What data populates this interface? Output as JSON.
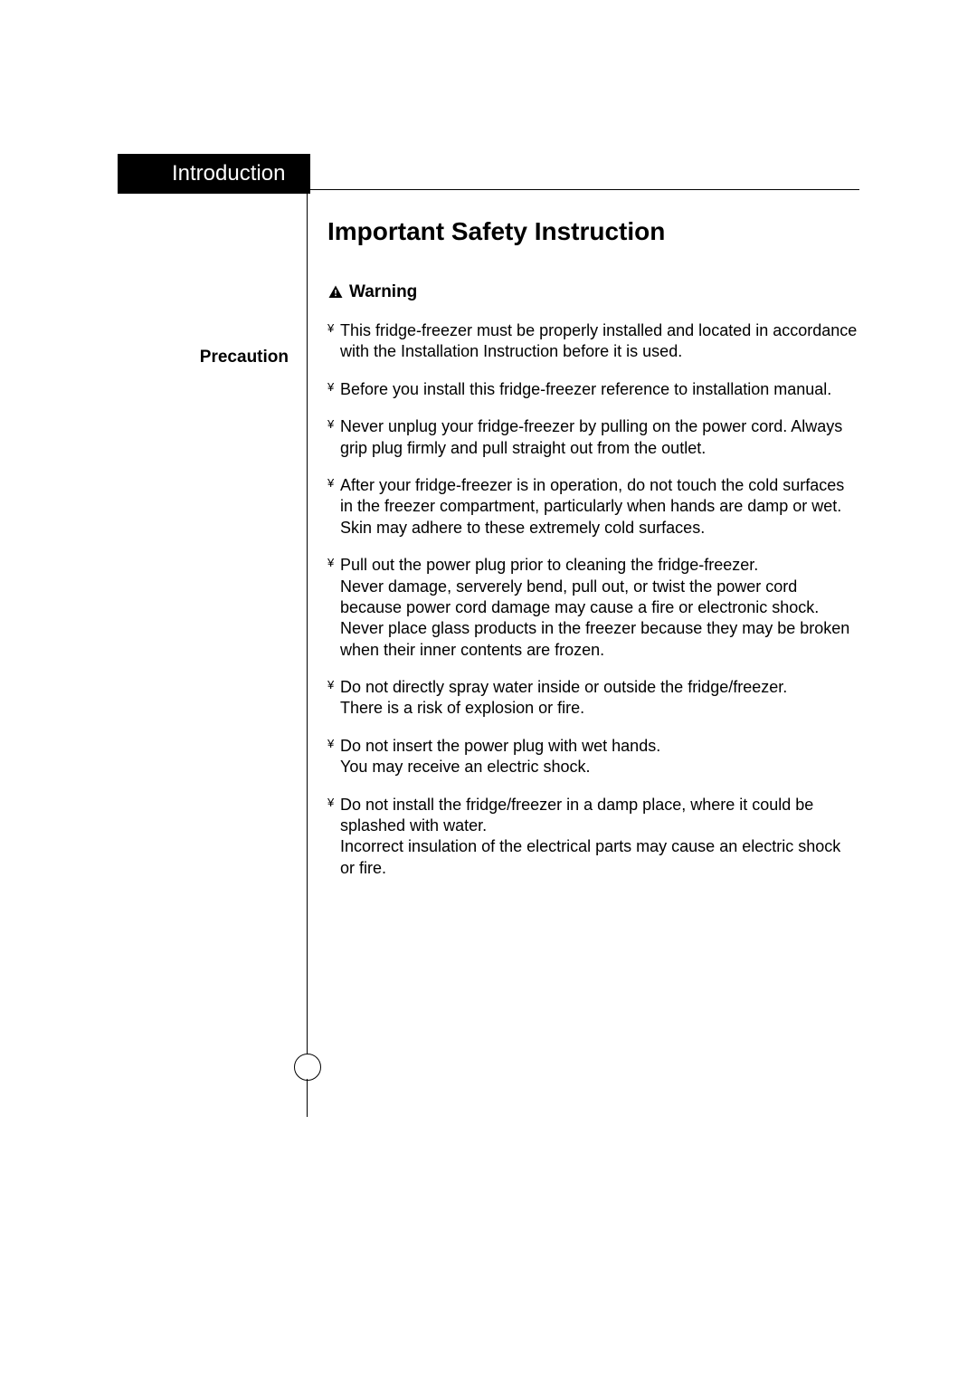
{
  "section_tab": "Introduction",
  "page_title": "Important Safety Instruction",
  "sidebar_label": "Precaution",
  "warning_label": "Warning",
  "bullets": [
    "This fridge-freezer must be properly installed and located in accordance with the Installation Instruction before it is used.",
    "Before you install this fridge-freezer reference to installation manual.",
    "Never unplug your fridge-freezer by pulling on the power cord. Always grip plug firmly and pull straight out from the outlet.",
    "After your fridge-freezer is in operation, do not touch the cold surfaces in the freezer compartment, particularly when hands are damp or wet. Skin may adhere to these extremely cold surfaces.",
    "Pull out the power plug prior to cleaning the fridge-freezer.\nNever damage, serverely bend, pull out, or twist the power cord because power cord damage may cause a fire or electronic shock.\nNever place glass products in the freezer because they may be broken when their inner contents are frozen.",
    "Do not directly spray water inside or outside the fridge/freezer.\nThere is a risk of explosion or fire.",
    "Do not insert the power plug with wet hands.\nYou may receive an electric shock.",
    "Do not install the fridge/freezer in a damp place, where it could be splashed with water.\nIncorrect insulation of the electrical parts may cause an electric shock or fire."
  ],
  "colors": {
    "text": "#000000",
    "tab_bg": "#000000",
    "tab_text": "#ffffff",
    "page_bg": "#ffffff"
  },
  "typography": {
    "tab_fontsize": 24,
    "title_fontsize": 28,
    "sidebar_fontsize": 19,
    "warning_fontsize": 19,
    "body_fontsize": 18
  },
  "bullet_marker": "¥"
}
